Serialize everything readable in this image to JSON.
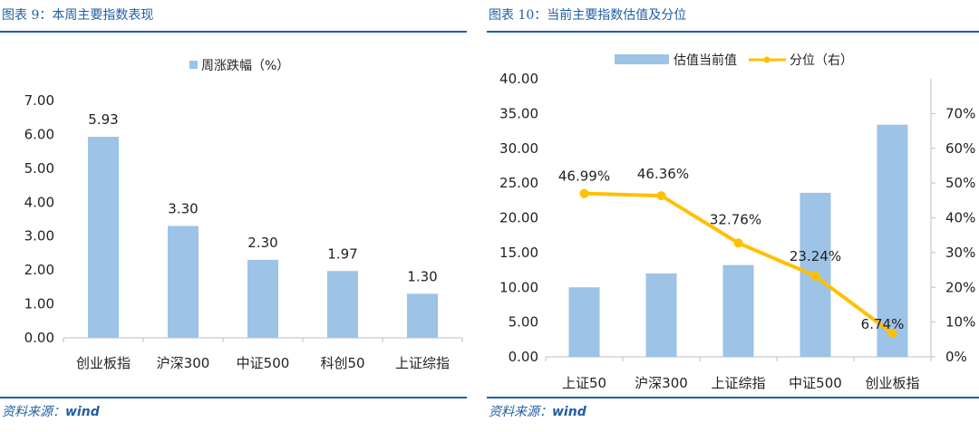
{
  "left_panel": {
    "title": "图表 9：本周主要指数表现",
    "source_label": "资料来源：",
    "source_value": "wind"
  },
  "right_panel": {
    "title": "图表 10：当前主要指数估值及分位",
    "source_label": "资料来源：",
    "source_value": "wind"
  },
  "chart_data": [
    {
      "type": "bar",
      "title": "",
      "categories": [
        "创业板指",
        "沪深300",
        "中证500",
        "科创50",
        "上证综指"
      ],
      "series": [
        {
          "name": "周涨跌幅（%）",
          "values": [
            5.93,
            3.3,
            2.3,
            1.97,
            1.3
          ],
          "color": "#9dc3e6"
        }
      ],
      "data_labels": [
        "5.93",
        "3.30",
        "2.30",
        "1.97",
        "1.30"
      ],
      "ylim": [
        0,
        7
      ],
      "yticks": [
        "0.00",
        "1.00",
        "2.00",
        "3.00",
        "4.00",
        "5.00",
        "6.00",
        "7.00"
      ],
      "grid": false,
      "legend_position": "top-center"
    },
    {
      "type": "bar",
      "title": "",
      "categories": [
        "上证50",
        "沪深300",
        "上证综指",
        "中证500",
        "创业板指"
      ],
      "series": [
        {
          "name": "估值当前值",
          "type": "bar",
          "axis": "left",
          "values": [
            10.0,
            12.0,
            13.2,
            23.6,
            33.4
          ],
          "color": "#9dc3e6"
        },
        {
          "name": "分位（右）",
          "type": "line",
          "axis": "right",
          "values": [
            46.99,
            46.36,
            32.76,
            23.24,
            6.74
          ],
          "color": "#ffc000"
        }
      ],
      "line_labels": [
        "46.99%",
        "46.36%",
        "32.76%",
        "23.24%",
        "6.74%"
      ],
      "ylim": [
        0,
        40
      ],
      "yticks": [
        "0.00",
        "5.00",
        "10.00",
        "15.00",
        "20.00",
        "25.00",
        "30.00",
        "35.00",
        "40.00"
      ],
      "y2lim": [
        0,
        80
      ],
      "y2ticks": [
        "0%",
        "10%",
        "20%",
        "30%",
        "40%",
        "50%",
        "60%",
        "70%"
      ],
      "grid": false,
      "legend_position": "top-center"
    }
  ]
}
